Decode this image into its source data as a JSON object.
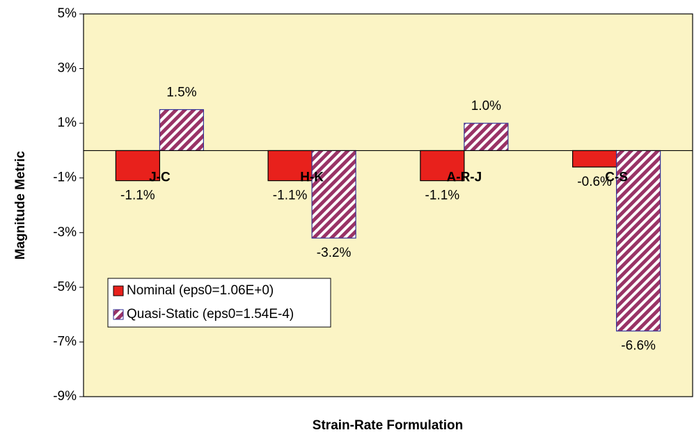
{
  "chart_data": {
    "type": "bar",
    "y_label": "Magnitude Metric",
    "x_label": "Strain-Rate Formulation",
    "categories": [
      "J-C",
      "H-K",
      "A-R-J",
      "C-S"
    ],
    "series": [
      {
        "name": "Nominal (eps0=1.06E+0)",
        "color": "#e8211c",
        "pattern": "solid",
        "values": [
          -1.1,
          -1.1,
          -1.1,
          -0.6
        ],
        "value_labels": [
          "-1.1%",
          "-1.1%",
          "-1.1%",
          "-0.6%"
        ]
      },
      {
        "name": "Quasi-Static (eps0=1.54E-4)",
        "color": "#993366",
        "pattern": "hatch",
        "values": [
          1.5,
          -3.2,
          1.0,
          -6.6
        ],
        "value_labels": [
          "1.5%",
          "-3.2%",
          "1.0%",
          "-6.6%"
        ]
      }
    ],
    "ylim": [
      -9,
      5
    ],
    "yticks": [
      {
        "value": 5,
        "label": "5%"
      },
      {
        "value": 3,
        "label": "3%"
      },
      {
        "value": 1,
        "label": "1%"
      },
      {
        "value": -1,
        "label": "-1%"
      },
      {
        "value": -3,
        "label": "-3%"
      },
      {
        "value": -5,
        "label": "-5%"
      },
      {
        "value": -7,
        "label": "-7%"
      },
      {
        "value": -9,
        "label": "-9%"
      }
    ],
    "plot_background": "#fbf4c5",
    "legend": "lower left"
  }
}
